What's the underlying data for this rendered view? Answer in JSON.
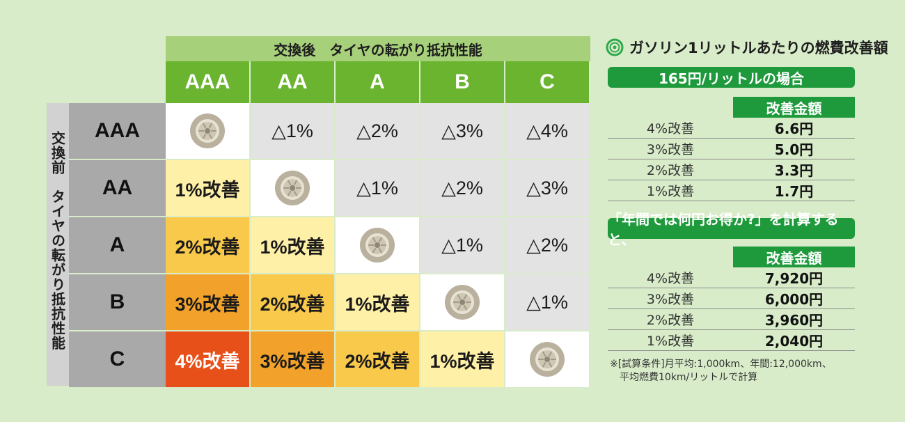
{
  "chart_data": {
    "type": "table",
    "title": "交換後　タイヤの転がり抵抗性能",
    "row_title": "交換前　タイヤの転がり抵抗性能",
    "columns": [
      "AAA",
      "AA",
      "A",
      "B",
      "C"
    ],
    "rows": [
      "AAA",
      "AA",
      "A",
      "B",
      "C"
    ],
    "cells": [
      [
        "tire",
        "△1%",
        "△2%",
        "△3%",
        "△4%"
      ],
      [
        "1%改善",
        "tire",
        "△1%",
        "△2%",
        "△3%"
      ],
      [
        "2%改善",
        "1%改善",
        "tire",
        "△1%",
        "△2%"
      ],
      [
        "3%改善",
        "2%改善",
        "1%改善",
        "tire",
        "△1%"
      ],
      [
        "4%改善",
        "3%改善",
        "2%改善",
        "1%改善",
        "tire"
      ]
    ],
    "colors": {
      "same": "#ffffff",
      "worse": "#e3e3e3",
      "improve_1": "#fff0a8",
      "improve_2": "#f8c94a",
      "improve_3": "#f2a22a",
      "improve_4": "#e8501a",
      "col_header": "#6ab42f",
      "row_header": "#a9a9a9",
      "top_header": "#a6d07a"
    }
  },
  "panel": {
    "title": "ガソリン1リットルあたりの燃費改善額",
    "icon": "ring-icon",
    "section1": {
      "pill": "165円/リットルの場合",
      "header": "改善金額",
      "rows": [
        {
          "label": "4%改善",
          "value": "6.6円"
        },
        {
          "label": "3%改善",
          "value": "5.0円"
        },
        {
          "label": "2%改善",
          "value": "3.3円"
        },
        {
          "label": "1%改善",
          "value": "1.7円"
        }
      ]
    },
    "section2": {
      "pill": "「年間では何円お得か?」を計算すると、",
      "header": "改善金額",
      "rows": [
        {
          "label": "4%改善",
          "value": "7,920円"
        },
        {
          "label": "3%改善",
          "value": "6,000円"
        },
        {
          "label": "2%改善",
          "value": "3,960円"
        },
        {
          "label": "1%改善",
          "value": "2,040円"
        }
      ]
    },
    "note_line1": "※[試算条件]月平均:1,000km、年間:12,000km、",
    "note_line2": "平均燃費10km/リットルで計算"
  }
}
